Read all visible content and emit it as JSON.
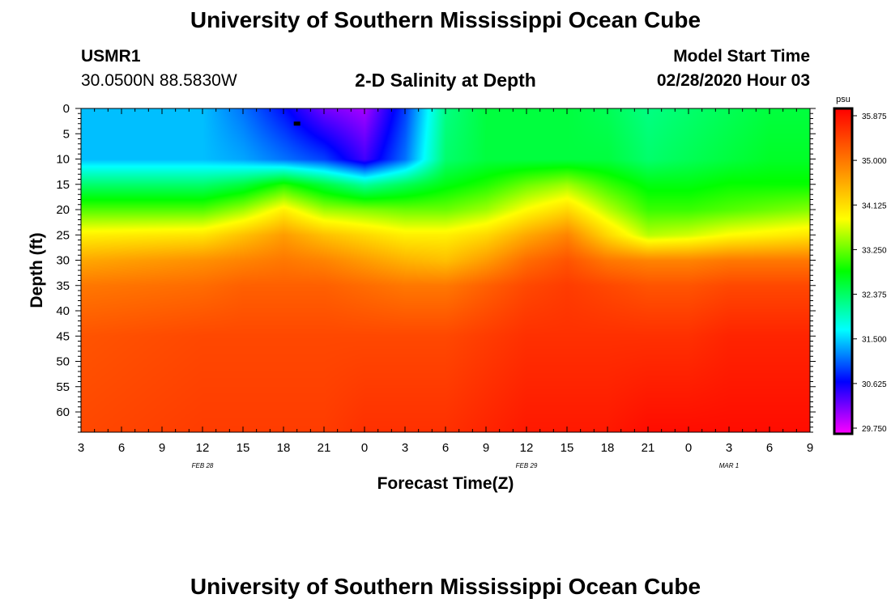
{
  "header": {
    "title": "University of Southern Mississippi Ocean Cube",
    "station_id": "USMR1",
    "location": "30.0500N 88.5830W",
    "plot_title": "2-D Salinity at Depth",
    "model_start_label": "Model Start Time",
    "model_start_value": "02/28/2020 Hour 03"
  },
  "footer": {
    "title": "University of Southern Mississippi Ocean Cube"
  },
  "chart_data": {
    "type": "heatmap",
    "variable": "Salinity",
    "units": "psu",
    "xlabel": "Forecast Time(Z)",
    "ylabel": "Depth (ft)",
    "x_tick_labels": [
      "3",
      "6",
      "9",
      "12",
      "15",
      "18",
      "21",
      "0",
      "3",
      "6",
      "9",
      "12",
      "15",
      "18",
      "21",
      "0",
      "3",
      "6",
      "9"
    ],
    "date_labels": [
      {
        "text": "FEB 28",
        "at_tick": 3
      },
      {
        "text": "FEB 29",
        "at_tick": 11
      },
      {
        "text": "MAR 1",
        "at_tick": 16
      }
    ],
    "y_range": [
      0,
      64
    ],
    "y_ticks": [
      0,
      5,
      10,
      15,
      20,
      25,
      30,
      35,
      40,
      45,
      50,
      55,
      60
    ],
    "colorbar_ticks": [
      "35.875",
      "35.000",
      "34.125",
      "33.250",
      "32.375",
      "31.500",
      "30.625",
      "29.750"
    ],
    "colorbar_range": [
      29.75,
      36.0
    ],
    "colorbar_colors": [
      "#ff00ff",
      "#0000ff",
      "#00ffff",
      "#00ff00",
      "#ffff00",
      "#ff7f00",
      "#ff0000"
    ],
    "depths_ft": [
      0,
      10,
      15,
      20,
      25,
      30,
      35,
      45,
      64
    ],
    "times_hours_from_start": [
      0,
      9,
      12,
      15,
      18,
      21,
      24,
      27,
      30,
      33,
      36,
      39,
      42,
      45,
      48,
      51,
      54
    ],
    "salinity_psu": [
      [
        31.5,
        31.5,
        32.4,
        33.2,
        34.0,
        34.6,
        35.0,
        35.3,
        35.4
      ],
      [
        31.5,
        31.5,
        32.4,
        33.2,
        34.1,
        34.8,
        35.1,
        35.4,
        35.5
      ],
      [
        31.2,
        31.4,
        32.6,
        33.5,
        34.4,
        34.9,
        35.2,
        35.4,
        35.5
      ],
      [
        30.8,
        31.2,
        33.0,
        34.0,
        34.7,
        35.0,
        35.2,
        35.4,
        35.5
      ],
      [
        30.3,
        31.0,
        32.6,
        33.5,
        34.4,
        34.9,
        35.2,
        35.4,
        35.5
      ],
      [
        30.1,
        30.5,
        32.2,
        33.4,
        34.2,
        34.7,
        35.1,
        35.4,
        35.6
      ],
      [
        31.0,
        31.2,
        32.5,
        33.3,
        34.0,
        34.5,
        35.0,
        35.4,
        35.6
      ],
      [
        32.3,
        32.4,
        32.8,
        33.3,
        34.0,
        34.4,
        35.0,
        35.4,
        35.6
      ],
      [
        32.6,
        32.6,
        33.0,
        33.5,
        34.2,
        34.7,
        35.2,
        35.5,
        35.7
      ],
      [
        32.6,
        32.6,
        33.3,
        33.9,
        34.6,
        35.1,
        35.4,
        35.6,
        35.8
      ],
      [
        32.6,
        32.6,
        33.5,
        34.2,
        34.9,
        35.3,
        35.5,
        35.6,
        35.8
      ],
      [
        32.5,
        32.6,
        33.1,
        33.6,
        34.2,
        35.0,
        35.4,
        35.6,
        35.8
      ],
      [
        32.3,
        32.4,
        32.8,
        33.1,
        33.6,
        34.9,
        35.3,
        35.6,
        35.9
      ],
      [
        32.4,
        32.5,
        32.8,
        33.1,
        33.7,
        34.9,
        35.3,
        35.6,
        35.9
      ],
      [
        32.5,
        32.6,
        32.9,
        33.2,
        33.9,
        35.0,
        35.4,
        35.7,
        35.9
      ],
      [
        32.6,
        32.7,
        32.9,
        33.3,
        34.0,
        35.0,
        35.4,
        35.7,
        35.9
      ],
      [
        32.6,
        32.7,
        32.9,
        33.4,
        34.1,
        35.0,
        35.4,
        35.7,
        35.9
      ]
    ],
    "marker": {
      "time_hours_from_start": 16,
      "depth_ft": 3
    }
  }
}
